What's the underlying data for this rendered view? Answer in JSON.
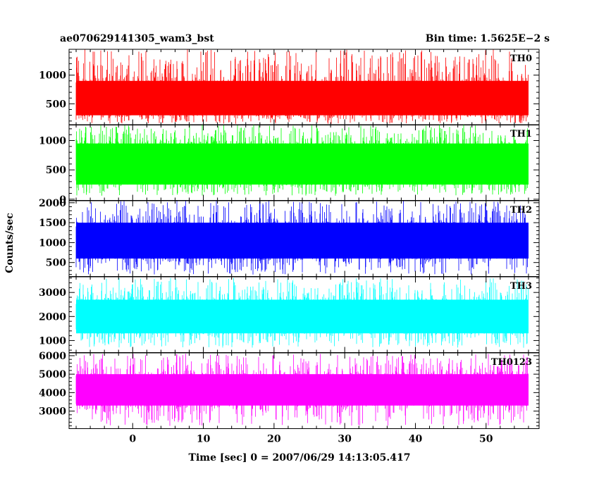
{
  "header": {
    "title_left": "ae070629141305_wam3_bst",
    "title_right": "Bin time: 1.5625E−2 s"
  },
  "axes": {
    "ylabel": "Counts/sec",
    "xlabel": "Time [sec] 0 = 2007/06/29 14:13:05.417"
  },
  "chart_data": [
    {
      "type": "line",
      "series": [
        {
          "name": "TH0"
        }
      ],
      "color": "#ff0000",
      "ylim": [
        130,
        1450
      ],
      "yticks": [
        500,
        1000
      ],
      "ytick_labels": [
        "500",
        "1000"
      ],
      "typical_range": [
        300,
        900
      ],
      "spike_range": [
        150,
        1450
      ],
      "xlim": [
        -9,
        57.5
      ],
      "data_x_range": [
        -8,
        56
      ]
    },
    {
      "type": "line",
      "series": [
        {
          "name": "TH1"
        }
      ],
      "color": "#00ff00",
      "ylim": [
        -20,
        1270
      ],
      "yticks": [
        0,
        500,
        1000
      ],
      "ytick_labels": [
        "0",
        "500",
        "1000"
      ],
      "typical_range": [
        250,
        950
      ],
      "spike_range": [
        60,
        1270
      ],
      "xlim": [
        -9,
        57.5
      ],
      "data_x_range": [
        -8,
        56
      ]
    },
    {
      "type": "line",
      "series": [
        {
          "name": "TH2"
        }
      ],
      "color": "#0000ff",
      "ylim": [
        150,
        2050
      ],
      "yticks": [
        500,
        1000,
        1500,
        2000
      ],
      "ytick_labels": [
        "500",
        "1000",
        "1500",
        "2000"
      ],
      "typical_range": [
        600,
        1500
      ],
      "spike_range": [
        200,
        2050
      ],
      "xlim": [
        -9,
        57.5
      ],
      "data_x_range": [
        -8,
        56
      ]
    },
    {
      "type": "line",
      "series": [
        {
          "name": "TH3"
        }
      ],
      "color": "#00ffff",
      "ylim": [
        500,
        3650
      ],
      "yticks": [
        1000,
        2000,
        3000
      ],
      "ytick_labels": [
        "1000",
        "2000",
        "3000"
      ],
      "typical_range": [
        1300,
        2700
      ],
      "spike_range": [
        700,
        3600
      ],
      "xlim": [
        -9,
        57.5
      ],
      "data_x_range": [
        -8,
        56
      ]
    },
    {
      "type": "line",
      "series": [
        {
          "name": "TH0123"
        }
      ],
      "color": "#ff00ff",
      "ylim": [
        2050,
        6150
      ],
      "yticks": [
        3000,
        4000,
        5000,
        6000
      ],
      "ytick_labels": [
        "3000",
        "4000",
        "5000",
        "6000"
      ],
      "typical_range": [
        3300,
        5000
      ],
      "spike_range": [
        2200,
        6100
      ],
      "xlim": [
        -9,
        57.5
      ],
      "data_x_range": [
        -8,
        56
      ],
      "xticks": [
        0,
        10,
        20,
        30,
        40,
        50
      ],
      "xtick_labels": [
        "0",
        "10",
        "20",
        "30",
        "40",
        "50"
      ]
    }
  ]
}
